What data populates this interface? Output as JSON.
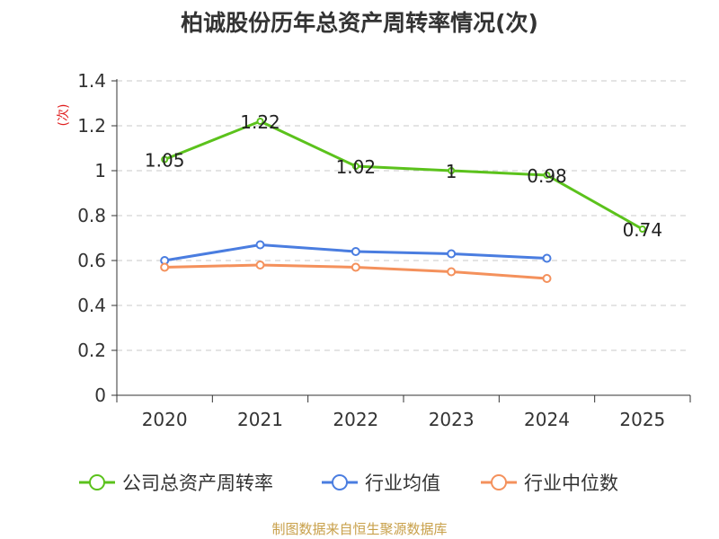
{
  "chart_data": {
    "type": "line",
    "title": "柏诚股份历年总资产周转率情况(次)",
    "ylabel": "(次)",
    "xlabel": "",
    "categories": [
      "2020",
      "2021",
      "2022",
      "2023",
      "2024",
      "2025"
    ],
    "yticks": [
      "0",
      "0.2",
      "0.4",
      "0.6",
      "0.8",
      "1",
      "1.2",
      "1.4"
    ],
    "ylim": [
      0,
      1.4
    ],
    "grid": true,
    "legend_position": "bottom",
    "series": [
      {
        "name": "公司总资产周转率",
        "color": "#5bc21c",
        "values": [
          1.05,
          1.22,
          1.02,
          1.0,
          0.98,
          0.74
        ],
        "labels": [
          "1.05",
          "1.22",
          "1.02",
          "1",
          "0.98",
          "0.74"
        ],
        "show_labels": true
      },
      {
        "name": "行业均值",
        "color": "#4a7de0",
        "values": [
          0.6,
          0.67,
          0.64,
          0.63,
          0.61,
          null
        ],
        "labels": [],
        "show_labels": false
      },
      {
        "name": "行业中位数",
        "color": "#f4915c",
        "values": [
          0.57,
          0.58,
          0.57,
          0.55,
          0.52,
          null
        ],
        "labels": [],
        "show_labels": false
      }
    ]
  },
  "source": "制图数据来自恒生聚源数据库"
}
